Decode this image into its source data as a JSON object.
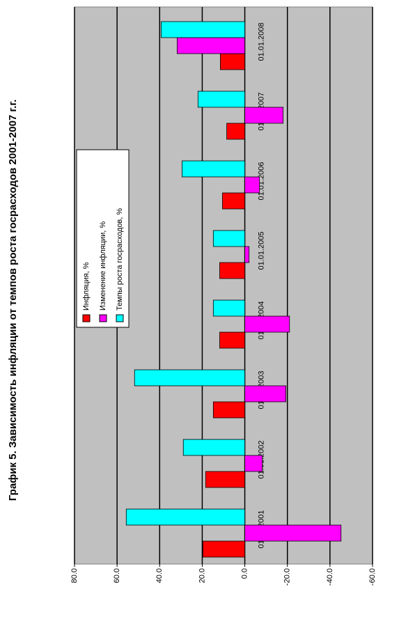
{
  "chart_data": {
    "type": "bar",
    "title": "График 5. Зависимость инфляции от темпов роста госрасходов 2001-2007 г.г.",
    "categories": [
      "01.01.2001",
      "01.01.2002",
      "01.01.2003",
      "01.01.2004",
      "01.01.2005",
      "01.01.2006",
      "01.01.2007",
      "01.01.2008"
    ],
    "series": [
      {
        "name": "Инфляция, %",
        "color": "#ff0000",
        "values": [
          19.7,
          18.4,
          14.8,
          11.8,
          11.8,
          10.5,
          8.5,
          11.5
        ]
      },
      {
        "name": "Изменение инфляции, %",
        "color": "#ff00ff",
        "values": [
          -45.2,
          -8.2,
          -19.3,
          -21,
          -2,
          -6.9,
          -18,
          31.8
        ]
      },
      {
        "name": "Темпы роста госрасходов, %",
        "color": "#00ffff",
        "values": [
          55.7,
          28.9,
          51.8,
          14.8,
          14.8,
          29.5,
          22,
          39.3
        ]
      }
    ],
    "ylim": [
      -60,
      80
    ],
    "yticks": [
      {
        "value": -60,
        "label": "-60.0"
      },
      {
        "value": -40,
        "label": "-40.0"
      },
      {
        "value": -20,
        "label": "-20.0"
      },
      {
        "value": 0,
        "label": "0.0"
      },
      {
        "value": 20,
        "label": "20.0"
      },
      {
        "value": 40,
        "label": "40.0"
      },
      {
        "value": 60,
        "label": "60.0"
      },
      {
        "value": 80,
        "label": "80.0"
      }
    ],
    "grid": true
  }
}
